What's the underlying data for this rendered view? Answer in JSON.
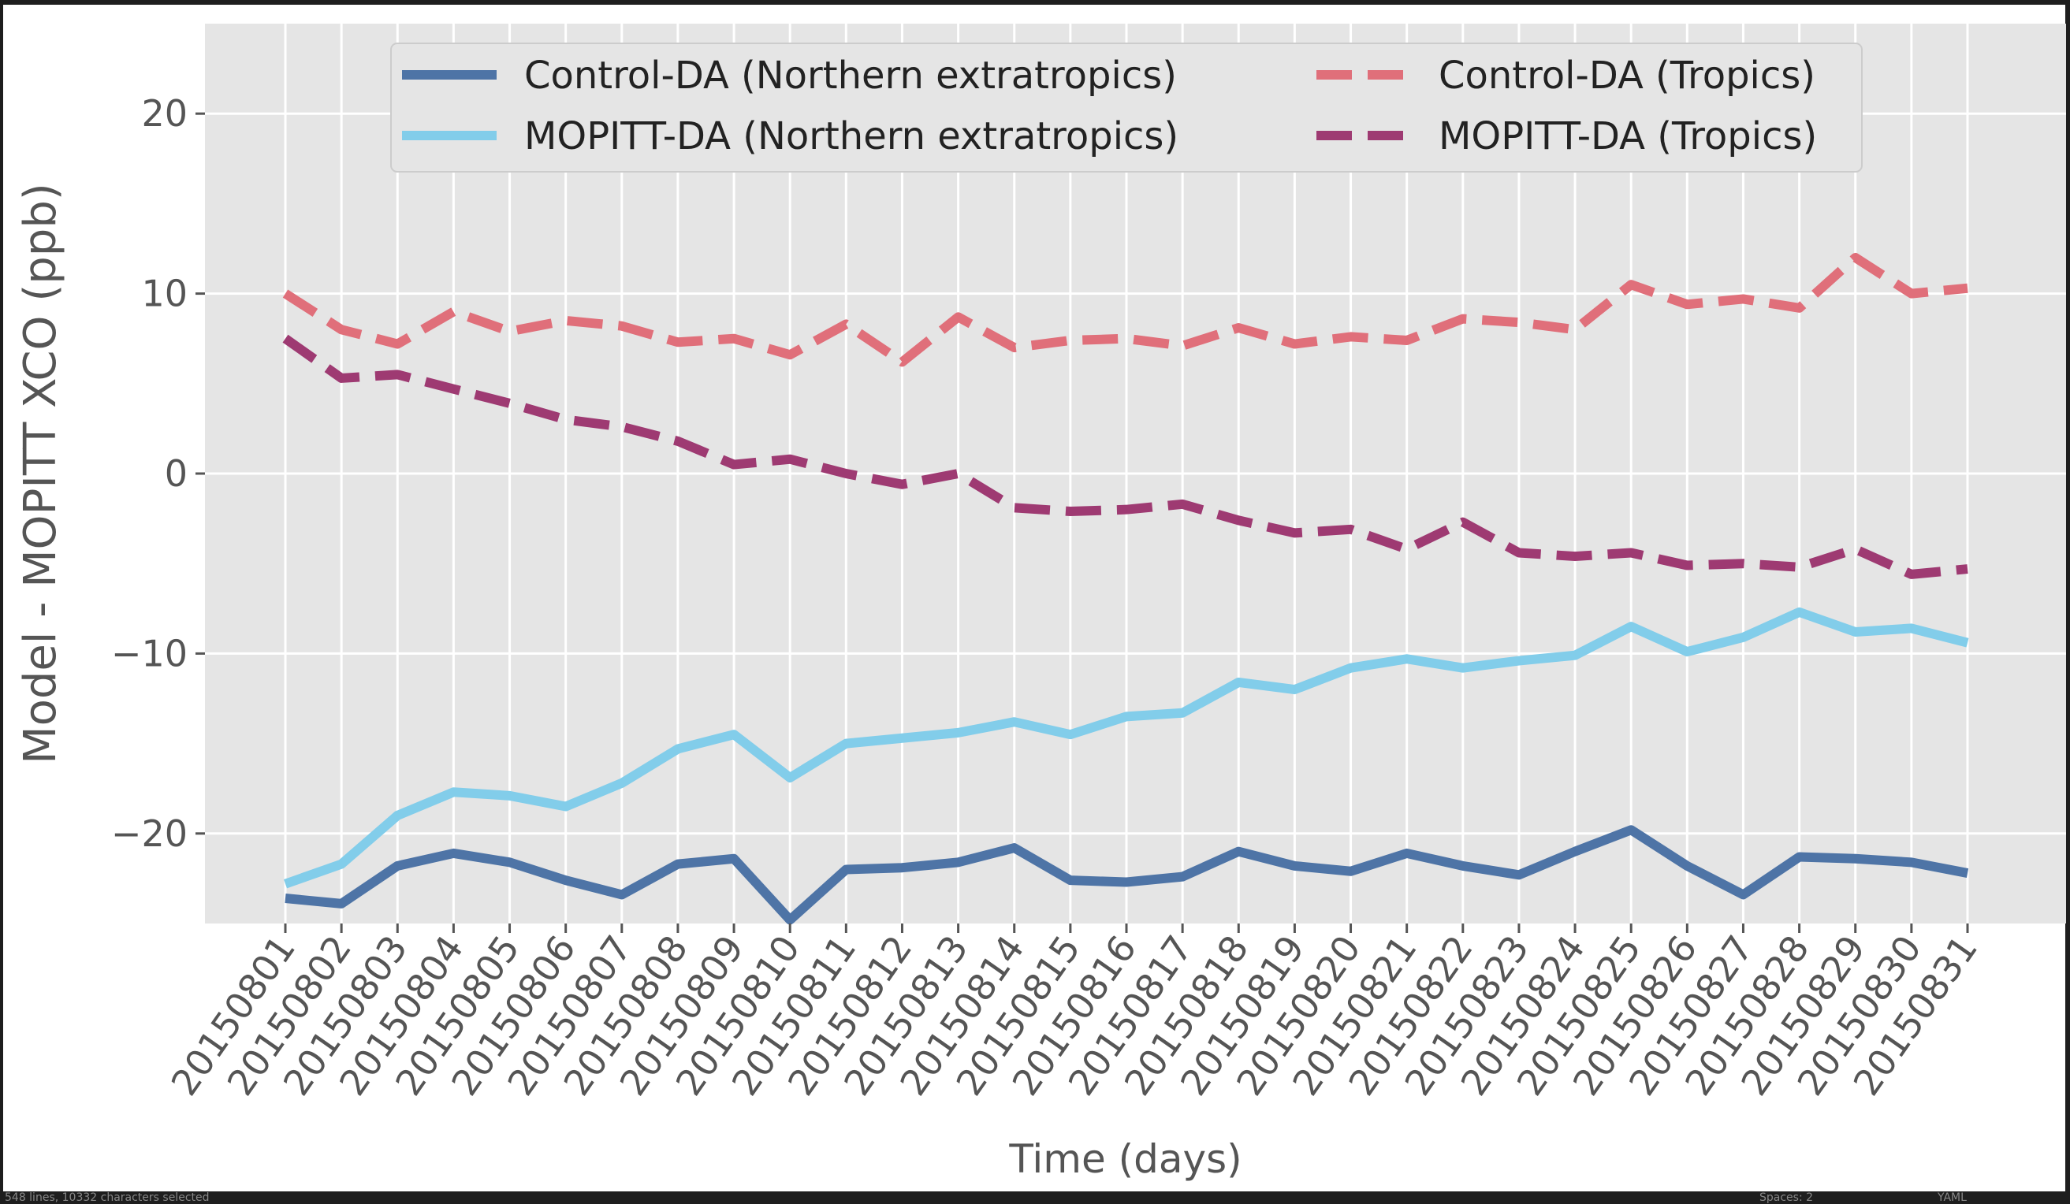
{
  "chart_data": {
    "type": "line",
    "title": "",
    "xlabel": "Time (days)",
    "ylabel": "Model - MOPITT XCO (ppb)",
    "ylim": [
      -25,
      25
    ],
    "yticks": [
      -20,
      -10,
      0,
      10,
      20
    ],
    "ytick_labels": [
      "−20",
      "−10",
      "0",
      "10",
      "20"
    ],
    "grid": true,
    "legend_position": "top",
    "categories": [
      "20150801",
      "20150802",
      "20150803",
      "20150804",
      "20150805",
      "20150806",
      "20150807",
      "20150808",
      "20150809",
      "20150810",
      "20150811",
      "20150812",
      "20150813",
      "20150814",
      "20150815",
      "20150816",
      "20150817",
      "20150818",
      "20150819",
      "20150820",
      "20150821",
      "20150822",
      "20150823",
      "20150824",
      "20150825",
      "20150826",
      "20150827",
      "20150828",
      "20150829",
      "20150830",
      "20150831"
    ],
    "series": [
      {
        "name": "Control-DA (Northern extratropics)",
        "color": "#4e74a6",
        "dash": "solid",
        "values": [
          -23.6,
          -23.9,
          -21.8,
          -21.1,
          -21.6,
          -22.6,
          -23.4,
          -21.7,
          -21.4,
          -24.8,
          -22.0,
          -21.9,
          -21.6,
          -20.8,
          -22.6,
          -22.7,
          -22.4,
          -21.0,
          -21.8,
          -22.1,
          -21.1,
          -21.8,
          -22.3,
          -21.0,
          -19.8,
          -21.8,
          -23.4,
          -21.3,
          -21.4,
          -21.6,
          -22.2
        ]
      },
      {
        "name": "MOPITT-DA (Northern extratropics)",
        "color": "#82cdea",
        "dash": "solid",
        "values": [
          -22.8,
          -21.7,
          -19.0,
          -17.7,
          -17.9,
          -18.5,
          -17.2,
          -15.3,
          -14.5,
          -16.9,
          -15.0,
          -14.7,
          -14.4,
          -13.8,
          -14.5,
          -13.5,
          -13.3,
          -11.6,
          -12.0,
          -10.8,
          -10.3,
          -10.8,
          -10.4,
          -10.1,
          -8.5,
          -9.9,
          -9.1,
          -7.7,
          -8.8,
          -8.6,
          -9.4
        ]
      },
      {
        "name": "Control-DA (Tropics)",
        "color": "#e06f7a",
        "dash": "dashed",
        "values": [
          10.0,
          8.0,
          7.2,
          9.0,
          7.9,
          8.5,
          8.2,
          7.3,
          7.5,
          6.6,
          8.3,
          6.2,
          8.7,
          7.0,
          7.4,
          7.5,
          7.1,
          8.1,
          7.2,
          7.6,
          7.4,
          8.6,
          8.4,
          8.0,
          10.5,
          9.4,
          9.7,
          9.2,
          12.0,
          10.0,
          10.3
        ]
      },
      {
        "name": "MOPITT-DA (Tropics)",
        "color": "#9e3a72",
        "dash": "dashed",
        "values": [
          7.5,
          5.3,
          5.5,
          4.7,
          3.9,
          3.0,
          2.6,
          1.8,
          0.5,
          0.8,
          0.0,
          -0.6,
          0.0,
          -1.9,
          -2.1,
          -2.0,
          -1.7,
          -2.6,
          -3.3,
          -3.1,
          -4.2,
          -2.7,
          -4.4,
          -4.6,
          -4.4,
          -5.1,
          -5.0,
          -5.2,
          -4.2,
          -5.6,
          -5.3
        ]
      }
    ]
  },
  "statusbar": {
    "selection": "548 lines, 10332 characters selected",
    "spaces": "Spaces: 2",
    "language": "YAML"
  }
}
